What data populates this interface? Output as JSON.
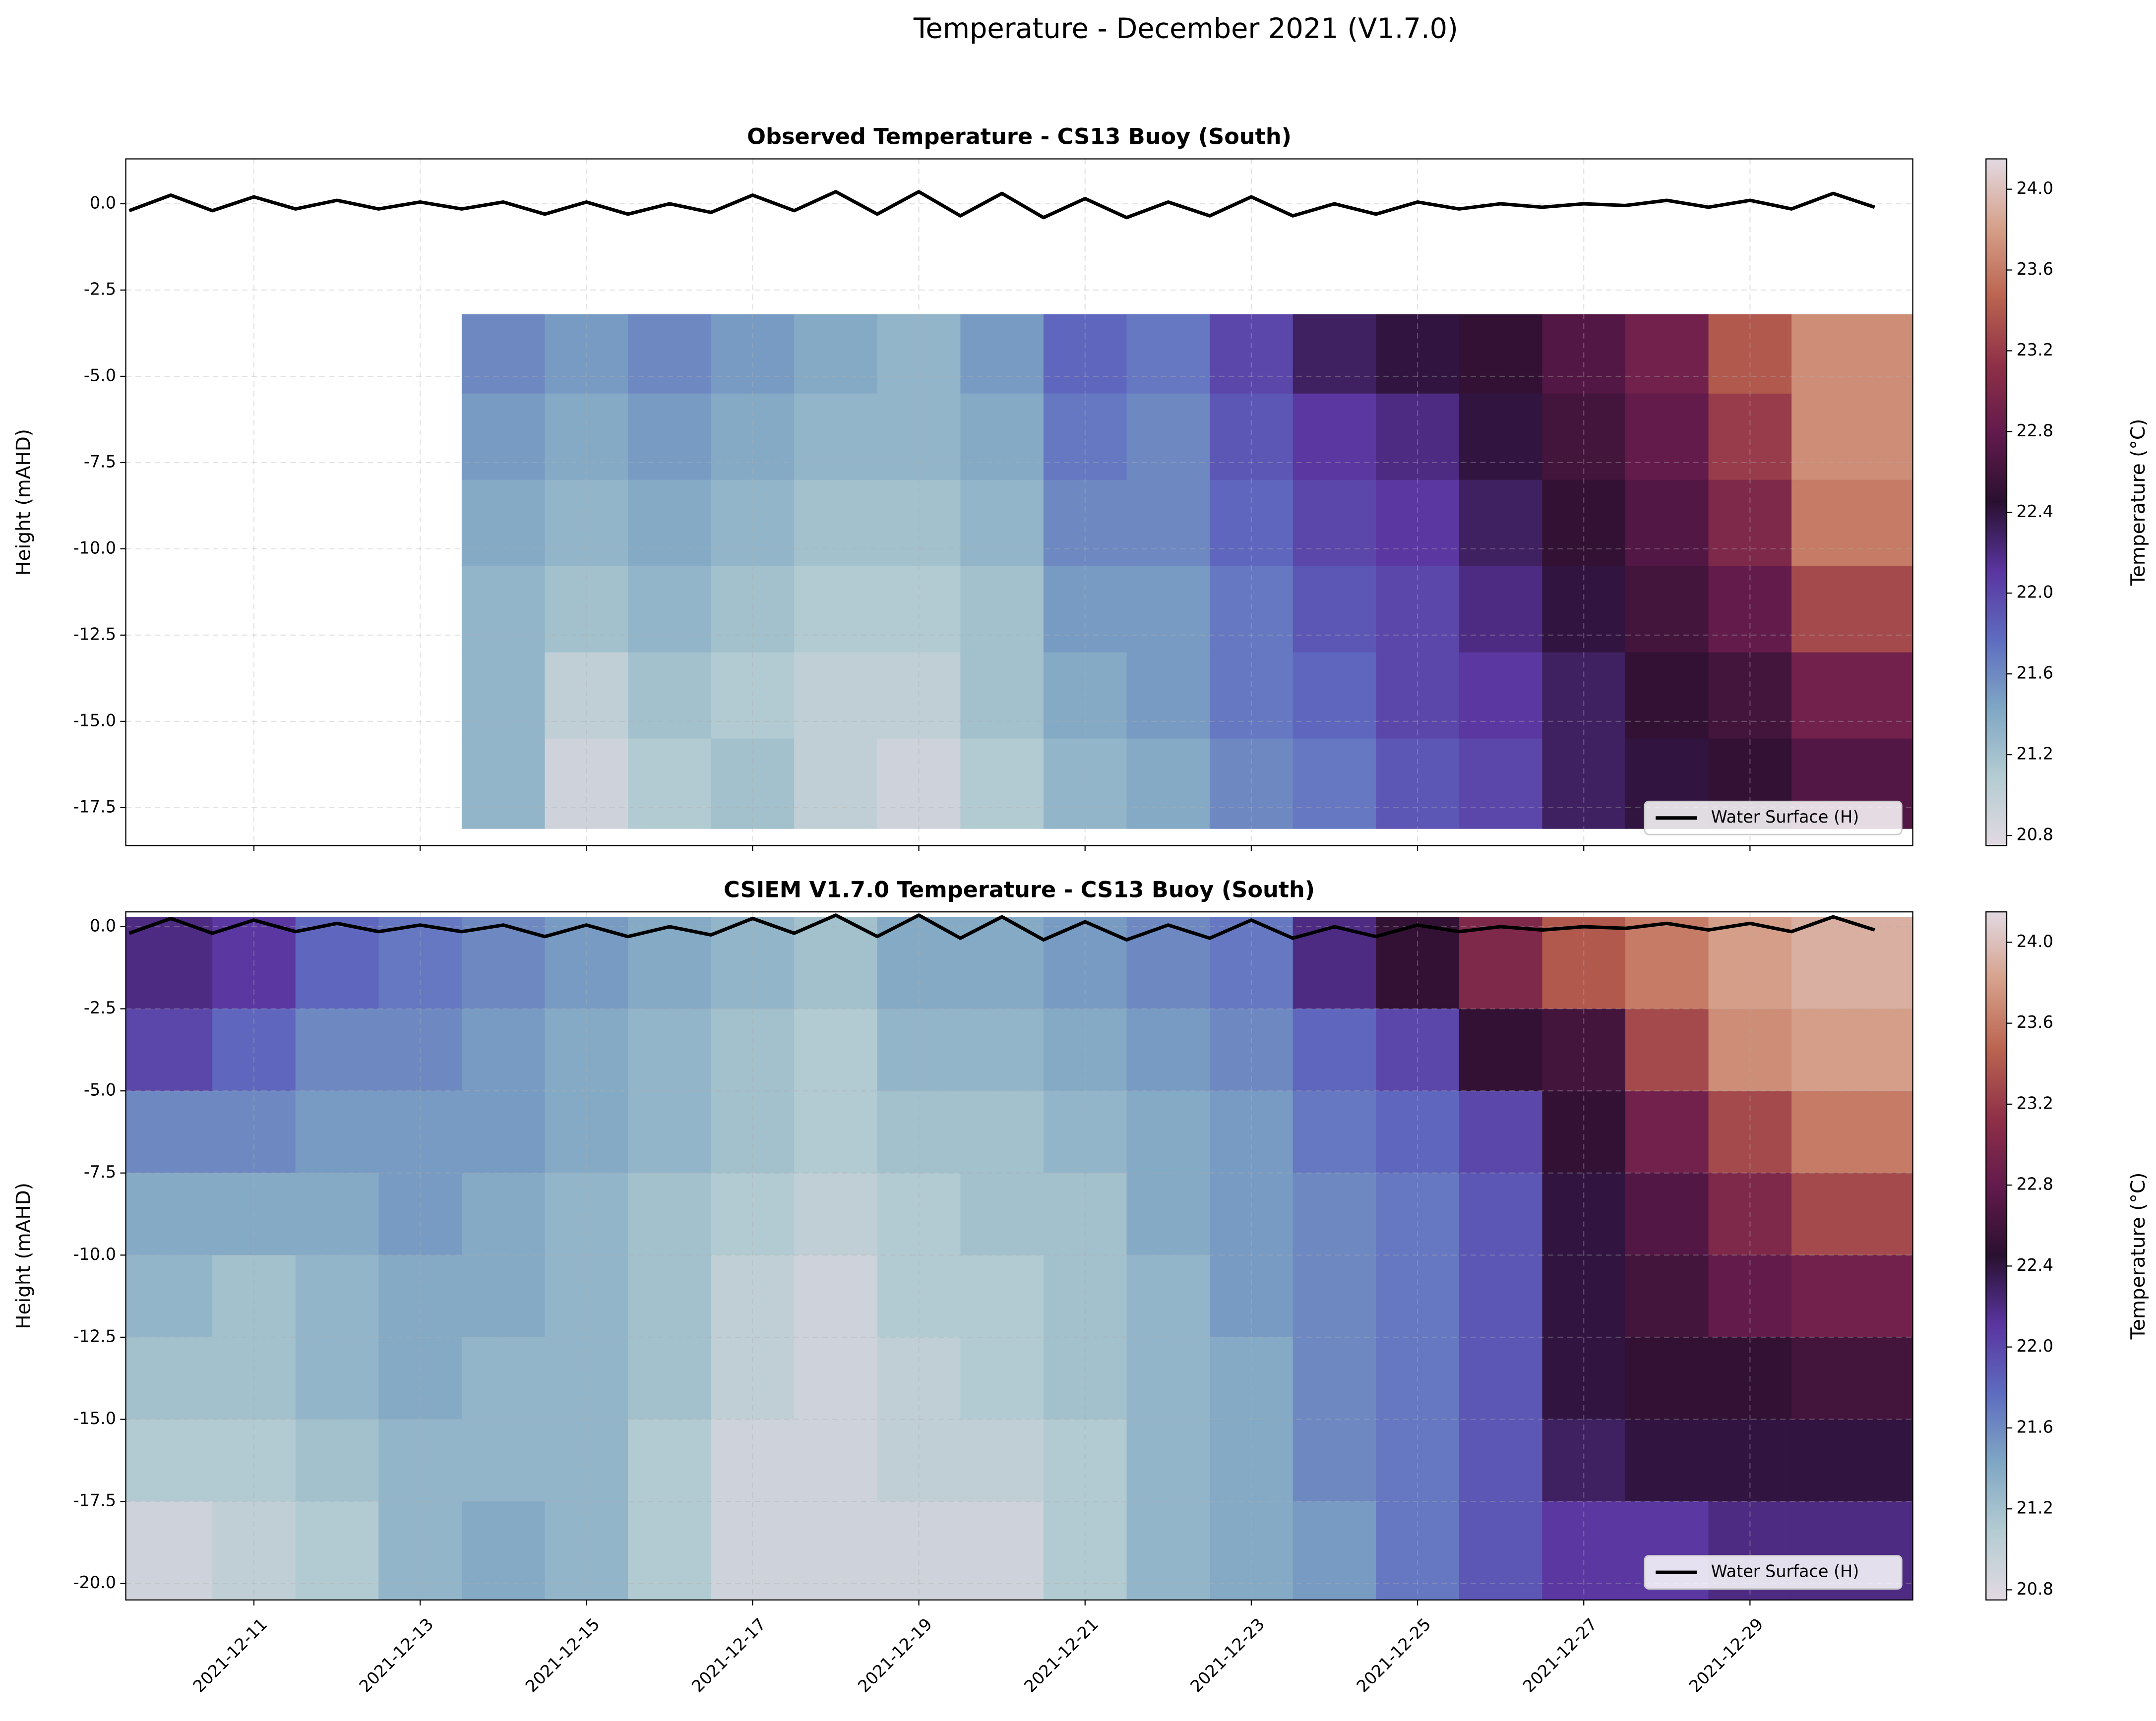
{
  "title": "Temperature - December 2021 (V1.7.0)",
  "chart_data": [
    {
      "type": "heatmap",
      "title": "Observed Temperature - CS13 Buoy (South)",
      "ylabel": "Height (mAHD)",
      "colorbar_label": "Temperature (°C)",
      "legend": "lower right",
      "grid": true,
      "xtick_labels": false,
      "xlim": [
        "2021-12-09 11:00",
        "2021-12-30 23:00"
      ],
      "ylim": [
        -18.6,
        1.3
      ],
      "xticks": [
        "2021-12-11",
        "2021-12-13",
        "2021-12-15",
        "2021-12-17",
        "2021-12-19",
        "2021-12-21",
        "2021-12-23",
        "2021-12-25",
        "2021-12-27",
        "2021-12-29"
      ],
      "yticks": [
        {
          "value": 0,
          "label": "0.0"
        },
        -2.5,
        {
          "value": -5,
          "label": "-5.0"
        },
        -7.5,
        {
          "value": -10,
          "label": "-10.0"
        },
        -12.5,
        {
          "value": -15,
          "label": "-15.0"
        },
        -17.5
      ],
      "clim": [
        20.75,
        24.15
      ],
      "cticks": [
        20.8,
        21.2,
        21.6,
        {
          "value": 22,
          "label": "22.0"
        },
        22.4,
        22.8,
        23.2,
        23.6,
        {
          "value": 24,
          "label": "24.0"
        }
      ],
      "colormap": [
        "#e2d9e2",
        "#b4ccd2",
        "#7fa7c4",
        "#5e6cc0",
        "#5a35a0",
        "#2a1030",
        "#621a4c",
        "#8f3048",
        "#bb6450",
        "#d6a08a",
        "#e2d9e2"
      ],
      "x_edges": [
        "2021-12-09 11:00",
        "2021-12-10 12:00",
        "2021-12-11 12:00",
        "2021-12-12 12:00",
        "2021-12-13 12:00",
        "2021-12-14 12:00",
        "2021-12-15 12:00",
        "2021-12-16 12:00",
        "2021-12-17 12:00",
        "2021-12-18 12:00",
        "2021-12-19 12:00",
        "2021-12-20 12:00",
        "2021-12-21 12:00",
        "2021-12-22 12:00",
        "2021-12-23 12:00",
        "2021-12-24 12:00",
        "2021-12-25 12:00",
        "2021-12-26 12:00",
        "2021-12-27 12:00",
        "2021-12-28 12:00",
        "2021-12-29 12:00",
        "2021-12-30 23:00"
      ],
      "y_edges": [
        -3.2,
        -5.5,
        -8,
        -10.5,
        -13,
        -15.5,
        -18.1
      ],
      "z": [
        [
          null,
          null,
          null,
          null,
          null,
          null
        ],
        [
          null,
          null,
          null,
          null,
          null,
          null
        ],
        [
          null,
          null,
          null,
          null,
          null,
          null
        ],
        [
          null,
          null,
          null,
          null,
          null,
          null
        ],
        [
          21.6,
          21.5,
          21.4,
          21.3,
          21.3,
          21.3
        ],
        [
          21.5,
          21.4,
          21.3,
          21.2,
          21.0,
          20.9
        ],
        [
          21.6,
          21.5,
          21.4,
          21.3,
          21.2,
          21.1
        ],
        [
          21.5,
          21.4,
          21.3,
          21.2,
          21.1,
          21.2
        ],
        [
          21.4,
          21.3,
          21.2,
          21.1,
          21.0,
          21.0
        ],
        [
          21.3,
          21.3,
          21.2,
          21.1,
          21.0,
          20.9
        ],
        [
          21.5,
          21.4,
          21.3,
          21.2,
          21.2,
          21.1
        ],
        [
          21.8,
          21.7,
          21.6,
          21.5,
          21.4,
          21.3
        ],
        [
          21.7,
          21.6,
          21.6,
          21.5,
          21.5,
          21.4
        ],
        [
          22.0,
          21.9,
          21.8,
          21.7,
          21.7,
          21.6
        ],
        [
          22.3,
          22.1,
          22.0,
          21.9,
          21.8,
          21.7
        ],
        [
          22.4,
          22.2,
          22.1,
          22.0,
          22.0,
          21.9
        ],
        [
          22.5,
          22.4,
          22.3,
          22.2,
          22.1,
          22.0
        ],
        [
          22.7,
          22.6,
          22.5,
          22.4,
          22.3,
          22.3
        ],
        [
          22.9,
          22.8,
          22.7,
          22.6,
          22.5,
          22.4
        ],
        [
          23.4,
          23.2,
          23.0,
          22.8,
          22.6,
          22.5
        ],
        [
          23.7,
          23.7,
          23.6,
          23.3,
          22.9,
          22.7
        ]
      ],
      "series": [
        {
          "name": "Water Surface (H)",
          "color": "#000000",
          "x": [
            "2021-12-09 12:00",
            "2021-12-10 00:00",
            "2021-12-10 12:00",
            "2021-12-11 00:00",
            "2021-12-11 12:00",
            "2021-12-12 00:00",
            "2021-12-12 12:00",
            "2021-12-13 00:00",
            "2021-12-13 12:00",
            "2021-12-14 00:00",
            "2021-12-14 12:00",
            "2021-12-15 00:00",
            "2021-12-15 12:00",
            "2021-12-16 00:00",
            "2021-12-16 12:00",
            "2021-12-17 00:00",
            "2021-12-17 12:00",
            "2021-12-18 00:00",
            "2021-12-18 12:00",
            "2021-12-19 00:00",
            "2021-12-19 12:00",
            "2021-12-20 00:00",
            "2021-12-20 12:00",
            "2021-12-21 00:00",
            "2021-12-21 12:00",
            "2021-12-22 00:00",
            "2021-12-22 12:00",
            "2021-12-23 00:00",
            "2021-12-23 12:00",
            "2021-12-24 00:00",
            "2021-12-24 12:00",
            "2021-12-25 00:00",
            "2021-12-25 12:00",
            "2021-12-26 00:00",
            "2021-12-26 12:00",
            "2021-12-27 00:00",
            "2021-12-27 12:00",
            "2021-12-28 00:00",
            "2021-12-28 12:00",
            "2021-12-29 00:00",
            "2021-12-29 12:00",
            "2021-12-30 00:00",
            "2021-12-30 12:00"
          ],
          "values": [
            -0.2,
            0.25,
            -0.2,
            0.2,
            -0.15,
            0.1,
            -0.15,
            0.05,
            -0.15,
            0.05,
            -0.3,
            0.05,
            -0.3,
            0.0,
            -0.25,
            0.25,
            -0.2,
            0.35,
            -0.3,
            0.35,
            -0.35,
            0.3,
            -0.4,
            0.15,
            -0.4,
            0.05,
            -0.35,
            0.2,
            -0.35,
            0.0,
            -0.3,
            0.05,
            -0.15,
            0.0,
            -0.1,
            0.0,
            -0.05,
            0.1,
            -0.1,
            0.1,
            -0.15,
            0.3,
            -0.1
          ]
        }
      ]
    },
    {
      "type": "heatmap",
      "title": "CSIEM V1.7.0 Temperature - CS13 Buoy (South)",
      "ylabel": "Height (mAHD)",
      "colorbar_label": "Temperature (°C)",
      "legend": "lower right",
      "grid": true,
      "xtick_labels": true,
      "xlim": [
        "2021-12-09 11:00",
        "2021-12-30 23:00"
      ],
      "ylim": [
        -20.5,
        0.45
      ],
      "xticks": [
        "2021-12-11",
        "2021-12-13",
        "2021-12-15",
        "2021-12-17",
        "2021-12-19",
        "2021-12-21",
        "2021-12-23",
        "2021-12-25",
        "2021-12-27",
        "2021-12-29"
      ],
      "yticks": [
        {
          "value": 0,
          "label": "0.0"
        },
        -2.5,
        {
          "value": -5,
          "label": "-5.0"
        },
        -7.5,
        {
          "value": -10,
          "label": "-10.0"
        },
        -12.5,
        {
          "value": -15,
          "label": "-15.0"
        },
        -17.5,
        {
          "value": -20,
          "label": "-20.0"
        }
      ],
      "clim": [
        20.75,
        24.15
      ],
      "cticks": [
        20.8,
        21.2,
        21.6,
        {
          "value": 22,
          "label": "22.0"
        },
        22.4,
        22.8,
        23.2,
        23.6,
        {
          "value": 24,
          "label": "24.0"
        }
      ],
      "colormap": [
        "#e2d9e2",
        "#b4ccd2",
        "#7fa7c4",
        "#5e6cc0",
        "#5a35a0",
        "#2a1030",
        "#621a4c",
        "#8f3048",
        "#bb6450",
        "#d6a08a",
        "#e2d9e2"
      ],
      "x_edges": [
        "2021-12-09 11:00",
        "2021-12-10 12:00",
        "2021-12-11 12:00",
        "2021-12-12 12:00",
        "2021-12-13 12:00",
        "2021-12-14 12:00",
        "2021-12-15 12:00",
        "2021-12-16 12:00",
        "2021-12-17 12:00",
        "2021-12-18 12:00",
        "2021-12-19 12:00",
        "2021-12-20 12:00",
        "2021-12-21 12:00",
        "2021-12-22 12:00",
        "2021-12-23 12:00",
        "2021-12-24 12:00",
        "2021-12-25 12:00",
        "2021-12-26 12:00",
        "2021-12-27 12:00",
        "2021-12-28 12:00",
        "2021-12-29 12:00",
        "2021-12-30 23:00"
      ],
      "y_edges": [
        0.3,
        -2.5,
        -5,
        -7.5,
        -10,
        -12.5,
        -15,
        -17.5,
        -20.5
      ],
      "z": [
        [
          22.2,
          22.0,
          21.6,
          21.4,
          21.3,
          21.2,
          21.1,
          20.9
        ],
        [
          22.1,
          21.8,
          21.6,
          21.4,
          21.2,
          21.2,
          21.1,
          21.0
        ],
        [
          21.8,
          21.6,
          21.5,
          21.4,
          21.3,
          21.3,
          21.2,
          21.1
        ],
        [
          21.7,
          21.6,
          21.5,
          21.5,
          21.4,
          21.4,
          21.3,
          21.3
        ],
        [
          21.6,
          21.5,
          21.5,
          21.4,
          21.4,
          21.3,
          21.3,
          21.4
        ],
        [
          21.5,
          21.4,
          21.4,
          21.3,
          21.3,
          21.3,
          21.3,
          21.3
        ],
        [
          21.4,
          21.3,
          21.3,
          21.2,
          21.2,
          21.2,
          21.1,
          21.1
        ],
        [
          21.3,
          21.2,
          21.2,
          21.1,
          21.0,
          21.0,
          20.9,
          20.9
        ],
        [
          21.2,
          21.1,
          21.1,
          21.0,
          20.9,
          20.9,
          20.9,
          20.9
        ],
        [
          21.4,
          21.3,
          21.2,
          21.1,
          21.1,
          21.0,
          21.0,
          20.9
        ],
        [
          21.4,
          21.3,
          21.2,
          21.2,
          21.1,
          21.1,
          21.0,
          20.9
        ],
        [
          21.5,
          21.4,
          21.3,
          21.2,
          21.2,
          21.2,
          21.1,
          21.1
        ],
        [
          21.6,
          21.5,
          21.4,
          21.4,
          21.3,
          21.3,
          21.3,
          21.3
        ],
        [
          21.7,
          21.6,
          21.5,
          21.5,
          21.5,
          21.4,
          21.4,
          21.4
        ],
        [
          22.2,
          21.8,
          21.7,
          21.6,
          21.6,
          21.6,
          21.6,
          21.5
        ],
        [
          22.5,
          22.0,
          21.8,
          21.7,
          21.7,
          21.7,
          21.7,
          21.7
        ],
        [
          23.0,
          22.5,
          22.0,
          21.9,
          21.9,
          21.9,
          21.9,
          21.9
        ],
        [
          23.4,
          22.6,
          22.5,
          22.4,
          22.4,
          22.4,
          22.3,
          22.1
        ],
        [
          23.6,
          23.3,
          22.9,
          22.7,
          22.6,
          22.5,
          22.4,
          22.1
        ],
        [
          23.8,
          23.7,
          23.3,
          23.0,
          22.8,
          22.5,
          22.4,
          22.2
        ],
        [
          23.9,
          23.8,
          23.6,
          23.3,
          22.9,
          22.6,
          22.4,
          22.2
        ]
      ],
      "series": [
        {
          "name": "Water Surface (H)",
          "color": "#000000",
          "x": [
            "2021-12-09 12:00",
            "2021-12-10 00:00",
            "2021-12-10 12:00",
            "2021-12-11 00:00",
            "2021-12-11 12:00",
            "2021-12-12 00:00",
            "2021-12-12 12:00",
            "2021-12-13 00:00",
            "2021-12-13 12:00",
            "2021-12-14 00:00",
            "2021-12-14 12:00",
            "2021-12-15 00:00",
            "2021-12-15 12:00",
            "2021-12-16 00:00",
            "2021-12-16 12:00",
            "2021-12-17 00:00",
            "2021-12-17 12:00",
            "2021-12-18 00:00",
            "2021-12-18 12:00",
            "2021-12-19 00:00",
            "2021-12-19 12:00",
            "2021-12-20 00:00",
            "2021-12-20 12:00",
            "2021-12-21 00:00",
            "2021-12-21 12:00",
            "2021-12-22 00:00",
            "2021-12-22 12:00",
            "2021-12-23 00:00",
            "2021-12-23 12:00",
            "2021-12-24 00:00",
            "2021-12-24 12:00",
            "2021-12-25 00:00",
            "2021-12-25 12:00",
            "2021-12-26 00:00",
            "2021-12-26 12:00",
            "2021-12-27 00:00",
            "2021-12-27 12:00",
            "2021-12-28 00:00",
            "2021-12-28 12:00",
            "2021-12-29 00:00",
            "2021-12-29 12:00",
            "2021-12-30 00:00",
            "2021-12-30 12:00"
          ],
          "values": [
            -0.2,
            0.25,
            -0.2,
            0.2,
            -0.15,
            0.1,
            -0.15,
            0.05,
            -0.15,
            0.05,
            -0.3,
            0.05,
            -0.3,
            0.0,
            -0.25,
            0.25,
            -0.2,
            0.35,
            -0.3,
            0.35,
            -0.35,
            0.3,
            -0.4,
            0.15,
            -0.4,
            0.05,
            -0.35,
            0.2,
            -0.35,
            0.0,
            -0.3,
            0.05,
            -0.15,
            0.0,
            -0.1,
            0.0,
            -0.05,
            0.1,
            -0.1,
            0.1,
            -0.15,
            0.3,
            -0.1
          ]
        }
      ]
    }
  ]
}
